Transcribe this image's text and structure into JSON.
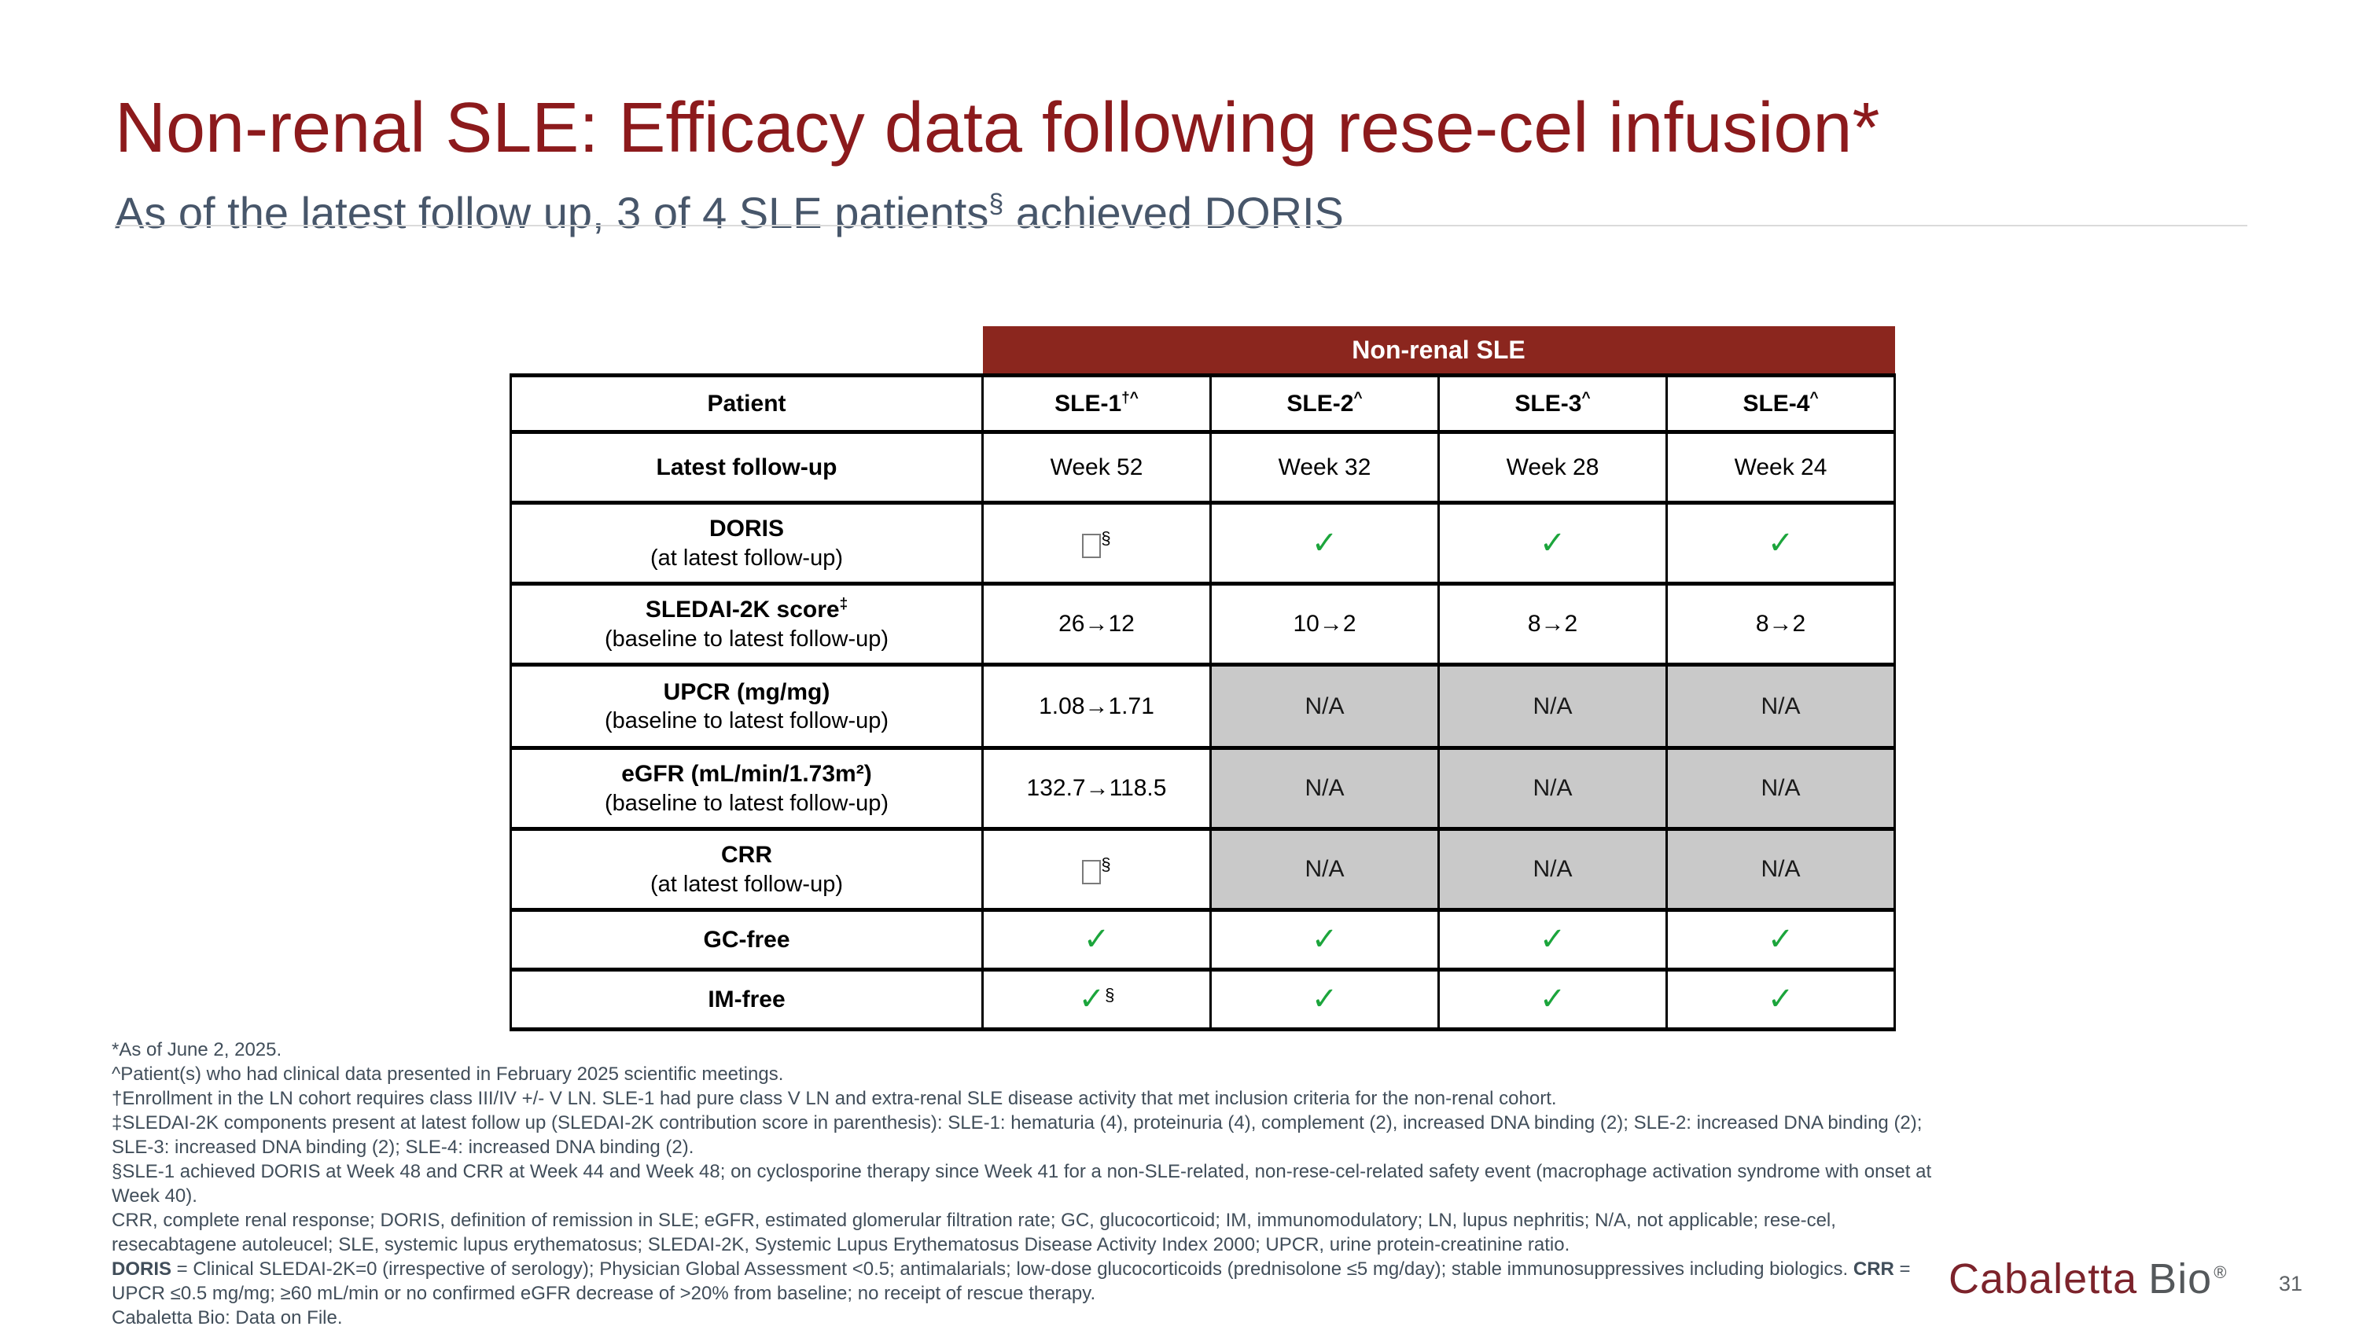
{
  "header": {
    "title": "Non-renal SLE: Efficacy data following rese-cel infusion*",
    "subtitle": {
      "text": "As of the latest follow up, 3 of 4 SLE patients",
      "sup": "§",
      "text_after": " achieved DORIS"
    }
  },
  "colors": {
    "title_red": "#8C1A1C",
    "band_maroon": "#8B261E",
    "check_green": "#1CA53C",
    "na_gray": "#C9C9C9",
    "footnote_slate": "#414E5A"
  },
  "icons": {
    "check": "✓",
    "missing_glyph_box": "□"
  },
  "table": {
    "band_label": "Non-renal SLE",
    "columns": [
      {
        "label": "Patient",
        "sup": ""
      },
      {
        "label": "SLE-1",
        "sup": "†^"
      },
      {
        "label": "SLE-2",
        "sup": "^"
      },
      {
        "label": "SLE-3",
        "sup": "^"
      },
      {
        "label": "SLE-4",
        "sup": "^"
      }
    ],
    "rows": [
      {
        "label": "Latest follow-up",
        "label_sup": "",
        "sublabel": "",
        "cells": [
          {
            "text": "Week 52",
            "sup": ""
          },
          {
            "text": "Week 32",
            "sup": ""
          },
          {
            "text": "Week 28",
            "sup": ""
          },
          {
            "text": "Week 24",
            "sup": ""
          }
        ]
      },
      {
        "label": "DORIS",
        "label_sup": "",
        "sublabel": "(at latest follow-up)",
        "cells": [
          {
            "text": "",
            "sup": "§"
          },
          {
            "text": "✓",
            "sup": ""
          },
          {
            "text": "✓",
            "sup": ""
          },
          {
            "text": "✓",
            "sup": ""
          }
        ]
      },
      {
        "label": "SLEDAI-2K score",
        "label_sup": "‡",
        "sublabel": "(baseline to latest follow-up)",
        "cells": [
          {
            "text": "26→12",
            "sup": ""
          },
          {
            "text": "10→2",
            "sup": ""
          },
          {
            "text": "8→2",
            "sup": ""
          },
          {
            "text": "8→2",
            "sup": ""
          }
        ]
      },
      {
        "label": "UPCR (mg/mg)",
        "label_sup": "",
        "sublabel": "(baseline to latest follow-up)",
        "cells": [
          {
            "text": "1.08→1.71",
            "sup": ""
          },
          {
            "text": "N/A",
            "sup": ""
          },
          {
            "text": "N/A",
            "sup": ""
          },
          {
            "text": "N/A",
            "sup": ""
          }
        ]
      },
      {
        "label": "eGFR (mL/min/1.73m²)",
        "label_sup": "",
        "sublabel": "(baseline to latest follow-up)",
        "cells": [
          {
            "text": "132.7→118.5",
            "sup": ""
          },
          {
            "text": "N/A",
            "sup": ""
          },
          {
            "text": "N/A",
            "sup": ""
          },
          {
            "text": "N/A",
            "sup": ""
          }
        ]
      },
      {
        "label": "CRR",
        "label_sup": "",
        "sublabel": "(at latest follow-up)",
        "cells": [
          {
            "text": "",
            "sup": "§"
          },
          {
            "text": "N/A",
            "sup": ""
          },
          {
            "text": "N/A",
            "sup": ""
          },
          {
            "text": "N/A",
            "sup": ""
          }
        ]
      },
      {
        "label": "GC-free",
        "label_sup": "",
        "sublabel": "",
        "cells": [
          {
            "text": "✓",
            "sup": ""
          },
          {
            "text": "✓",
            "sup": ""
          },
          {
            "text": "✓",
            "sup": ""
          },
          {
            "text": "✓",
            "sup": ""
          }
        ]
      },
      {
        "label": "IM-free",
        "label_sup": "",
        "sublabel": "",
        "cells": [
          {
            "text": "✓",
            "sup": "§"
          },
          {
            "text": "✓",
            "sup": ""
          },
          {
            "text": "✓",
            "sup": ""
          },
          {
            "text": "✓",
            "sup": ""
          }
        ]
      }
    ]
  },
  "footnotes": {
    "lines": [
      "*As of June 2, 2025.",
      "^Patient(s) who had clinical data presented in February 2025 scientific meetings.",
      "†Enrollment in the LN cohort requires class III/IV +/- V LN. SLE-1 had pure class V LN and extra-renal SLE disease activity that met inclusion criteria for the non-renal cohort.",
      "‡SLEDAI-2K components present at latest follow up (SLEDAI-2K contribution score in parenthesis): SLE-1: hematuria (4), proteinuria (4), complement (2), increased DNA binding (2); SLE-2: increased DNA binding (2); SLE-3: increased DNA binding (2); SLE-4: increased DNA binding (2).",
      "§SLE-1 achieved DORIS at Week 48 and CRR at Week 44 and Week 48; on cyclosporine therapy since Week 41 for a non-SLE-related, non-rese-cel-related safety event (macrophage activation syndrome with onset at Week 40).",
      "CRR, complete renal response; DORIS, definition of remission in SLE; eGFR, estimated glomerular filtration rate; GC, glucocorticoid; IM, immunomodulatory; LN, lupus nephritis; N/A, not applicable; rese-cel, resecabtagene autoleucel; SLE, systemic lupus erythematosus; SLEDAI-2K, Systemic Lupus Erythematosus Disease Activity Index 2000; UPCR, urine protein-creatinine ratio."
    ],
    "definitions": {
      "doris_label": "DORIS",
      "doris_text": " = Clinical SLEDAI-2K=0 (irrespective of serology); Physician Global Assessment <0.5; antimalarials; low-dose glucocorticoids (prednisolone ≤5 mg/day); stable immunosuppressives including biologics. ",
      "crr_label": "CRR",
      "crr_text": " = UPCR ≤0.5 mg/mg; ≥60 mL/min or no confirmed eGFR decrease of >20% from baseline; no receipt of rescue therapy."
    },
    "data_on_file": "Cabaletta Bio: Data on File."
  },
  "footer": {
    "brand": {
      "name_left": "Cabaletta",
      "name_right": "Bio",
      "registered": "®"
    },
    "page_number": "31"
  }
}
